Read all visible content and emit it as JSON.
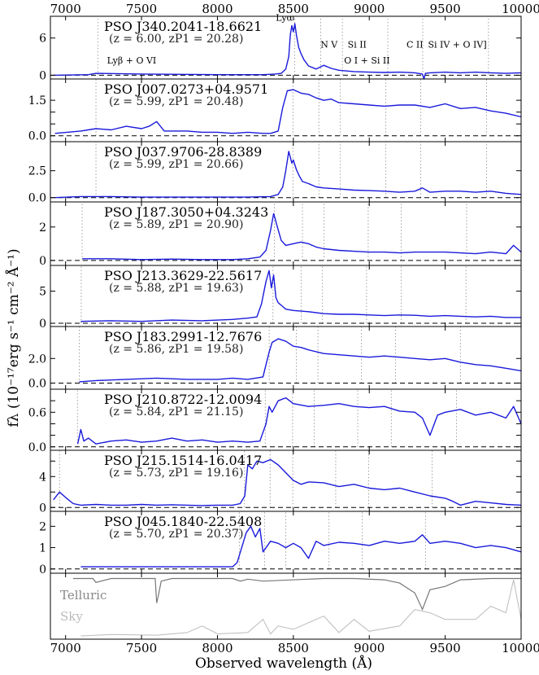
{
  "chart_data": {
    "type": "line",
    "xlabel": "Observed wavelength (Å)",
    "ylabel": "fλ (10⁻¹⁷erg s⁻¹ cm⁻² Å⁻¹)",
    "xlim": [
      6900,
      10000
    ],
    "xticks": [
      7000,
      7500,
      8000,
      8500,
      9000,
      9500,
      10000
    ],
    "line_labels": [
      {
        "text": "Lyα",
        "x": 8440,
        "y": 0.93
      },
      {
        "text": "N V",
        "x": 8735,
        "y": 0.5
      },
      {
        "text": "Si II",
        "x": 8920,
        "y": 0.5
      },
      {
        "text": "C II",
        "x": 9300,
        "y": 0.5
      },
      {
        "text": "Si IV + O IV]",
        "x": 9580,
        "y": 0.5
      },
      {
        "text": "Lyβ + O VI",
        "x": 7435,
        "y": 0.25
      },
      {
        "text": "O I + Si II",
        "x": 8985,
        "y": 0.25
      }
    ],
    "panels": [
      {
        "name": "PSO J340.2041-18.6621",
        "info": "(z = 6.00, zP1 = 20.28)",
        "z": 6.0,
        "ylim": [
          -0.6,
          9.5
        ],
        "yticks": [
          0,
          6
        ],
        "ytick_labels": [
          "0",
          "6"
        ],
        "cont": 0.3,
        "peak": 7.8,
        "lines_x": [
          7212,
          8509,
          8680,
          8823,
          9122,
          9352,
          9785
        ],
        "x": [
          6920,
          7150,
          7200,
          7500,
          8000,
          8300,
          8380,
          8420,
          8450,
          8470,
          8480,
          8490,
          8500,
          8510,
          8520,
          8535,
          8550,
          8570,
          8600,
          8650,
          8700,
          8750,
          8800,
          8900,
          9000,
          9100,
          9200,
          9300,
          9350,
          9360,
          9370,
          9400,
          9500,
          9600,
          9700,
          9800,
          9900,
          10000
        ],
        "y": [
          0.0,
          0.1,
          0.3,
          0.2,
          0.1,
          0.1,
          0.2,
          0.3,
          1.0,
          3.0,
          6.5,
          8.0,
          7.0,
          8.3,
          6.5,
          4.5,
          3.5,
          2.5,
          1.5,
          1.0,
          1.6,
          1.1,
          0.8,
          0.6,
          0.5,
          0.45,
          0.5,
          0.4,
          0.2,
          -0.6,
          0.3,
          0.4,
          0.5,
          0.4,
          0.5,
          0.4,
          0.3,
          0.4
        ]
      },
      {
        "name": "PSO J007.0273+04.9571",
        "info": "(z = 5.99, zP1 = 20.48)",
        "z": 5.99,
        "ylim": [
          -0.25,
          2.4
        ],
        "yticks": [
          0,
          0.5,
          1.0,
          1.5
        ],
        "ytick_labels": [
          "0.0",
          "",
          "",
          "1.5"
        ],
        "cont": 1.25,
        "peak": 1.9,
        "lines_x": [
          7200,
          8497,
          8668,
          8810,
          9108,
          9339,
          9772
        ],
        "x": [
          6930,
          7100,
          7200,
          7300,
          7400,
          7500,
          7550,
          7600,
          7650,
          7700,
          7800,
          7900,
          8000,
          8100,
          8200,
          8300,
          8350,
          8400,
          8430,
          8460,
          8500,
          8550,
          8600,
          8650,
          8700,
          8750,
          8800,
          8900,
          9000,
          9100,
          9200,
          9300,
          9400,
          9500,
          9600,
          9700,
          9800,
          9900,
          10000
        ],
        "y": [
          0.1,
          0.2,
          0.3,
          0.25,
          0.4,
          0.3,
          0.4,
          0.6,
          0.2,
          0.2,
          0.2,
          0.15,
          0.15,
          0.1,
          0.15,
          0.1,
          0.1,
          0.2,
          1.2,
          1.9,
          1.95,
          1.8,
          1.75,
          1.6,
          1.5,
          1.55,
          1.4,
          1.35,
          1.3,
          1.25,
          1.3,
          1.3,
          1.2,
          1.35,
          1.15,
          1.2,
          1.05,
          0.95,
          0.8
        ]
      },
      {
        "name": "PSO J037.9706-28.8389",
        "info": "(z = 5.99, zP1 = 20.66)",
        "z": 5.99,
        "ylim": [
          -0.4,
          5.2
        ],
        "yticks": [
          0,
          2.5
        ],
        "ytick_labels": [
          "0.0",
          "2.5"
        ],
        "cont": 0.4,
        "peak": 4.2,
        "lines_x": [
          7200,
          8497,
          8668,
          8810,
          9108,
          9339,
          9772
        ],
        "x": [
          6930,
          7100,
          7300,
          7500,
          7800,
          8000,
          8200,
          8350,
          8400,
          8430,
          8450,
          8470,
          8490,
          8500,
          8520,
          8540,
          8560,
          8600,
          8650,
          8700,
          8800,
          8900,
          9000,
          9100,
          9200,
          9300,
          9350,
          9400,
          9500,
          9600,
          9700,
          9800,
          9900,
          10000
        ],
        "y": [
          0.0,
          0.1,
          0.1,
          0.05,
          0.05,
          0.05,
          0.05,
          0.1,
          0.3,
          1.0,
          2.5,
          4.3,
          3.2,
          3.5,
          2.6,
          2.0,
          1.5,
          1.3,
          1.0,
          0.9,
          0.8,
          0.7,
          0.65,
          0.6,
          0.5,
          0.6,
          0.9,
          0.5,
          0.6,
          0.6,
          0.5,
          0.6,
          0.4,
          0.3
        ]
      },
      {
        "name": "PSO J187.3050+04.3243",
        "info": "(z = 5.89, zP1 = 20.90)",
        "z": 5.89,
        "ylim": [
          -0.3,
          3.5
        ],
        "yticks": [
          0,
          2
        ],
        "ytick_labels": [
          "0",
          "2"
        ],
        "cont": 0.5,
        "peak": 2.8,
        "lines_x": [
          7109,
          8375,
          8560,
          8702,
          8993,
          9210,
          9641
        ],
        "x": [
          7110,
          7300,
          7500,
          7700,
          7900,
          8100,
          8200,
          8280,
          8320,
          8350,
          8370,
          8380,
          8395,
          8420,
          8450,
          8500,
          8550,
          8600,
          8650,
          8700,
          8800,
          8900,
          9000,
          9100,
          9200,
          9300,
          9400,
          9500,
          9600,
          9700,
          9800,
          9900,
          9950,
          10000
        ],
        "y": [
          0.1,
          0.1,
          0.05,
          0.08,
          0.05,
          0.05,
          0.1,
          0.2,
          0.6,
          1.8,
          2.8,
          2.5,
          2.0,
          1.2,
          0.9,
          1.0,
          1.1,
          1.0,
          0.8,
          0.7,
          0.6,
          0.55,
          0.5,
          0.5,
          0.45,
          0.5,
          0.5,
          0.5,
          0.45,
          0.4,
          0.5,
          0.4,
          0.9,
          0.5
        ]
      },
      {
        "name": "PSO J213.3629-22.5617",
        "info": "(z = 5.88, zP1 = 19.63)",
        "z": 5.88,
        "ylim": [
          -0.5,
          9.0
        ],
        "yticks": [
          0,
          5
        ],
        "ytick_labels": [
          "0",
          "5"
        ],
        "cont": 1.2,
        "peak": 8.0,
        "lines_x": [
          7103,
          8366,
          8551,
          8692,
          8982,
          9211,
          9637
        ],
        "x": [
          7100,
          7300,
          7500,
          7700,
          7900,
          8100,
          8200,
          8260,
          8290,
          8320,
          8340,
          8355,
          8370,
          8385,
          8400,
          8420,
          8450,
          8500,
          8600,
          8700,
          8800,
          8900,
          9000,
          9100,
          9200,
          9300,
          9400,
          9500,
          9600,
          9700,
          9800,
          9900,
          10000
        ],
        "y": [
          0.3,
          0.4,
          0.3,
          0.5,
          0.4,
          0.6,
          0.8,
          1.0,
          3.0,
          6.5,
          8.2,
          5.5,
          7.5,
          4.0,
          3.2,
          2.8,
          2.2,
          2.0,
          1.8,
          1.5,
          1.4,
          1.4,
          1.3,
          1.2,
          1.3,
          1.25,
          1.1,
          1.2,
          1.1,
          1.0,
          1.1,
          0.9,
          0.9
        ]
      },
      {
        "name": "PSO J183.2991-12.7676",
        "info": "(z = 5.86, zP1 = 19.58)",
        "z": 5.86,
        "ylim": [
          -0.5,
          4.6
        ],
        "yticks": [
          0,
          2
        ],
        "ytick_labels": [
          "0.0",
          "2.0"
        ],
        "cont": 2.2,
        "peak": 3.6,
        "lines_x": [
          7090,
          8341,
          8519,
          8662,
          8949,
          9172,
          9600
        ],
        "x": [
          7090,
          7200,
          7400,
          7600,
          7800,
          8000,
          8100,
          8200,
          8300,
          8320,
          8340,
          8360,
          8400,
          8450,
          8500,
          8550,
          8600,
          8700,
          8800,
          8900,
          9000,
          9100,
          9200,
          9300,
          9400,
          9500,
          9600,
          9700,
          9800,
          9900,
          10000
        ],
        "y": [
          0.1,
          0.2,
          0.3,
          0.4,
          0.3,
          0.3,
          0.4,
          0.3,
          0.5,
          1.5,
          2.5,
          3.3,
          3.6,
          3.4,
          3.0,
          2.9,
          2.7,
          2.4,
          2.3,
          2.2,
          2.1,
          2.2,
          2.1,
          2.0,
          1.9,
          2.0,
          1.7,
          1.5,
          1.4,
          1.2,
          1.0
        ]
      },
      {
        "name": "PSO J210.8722-12.0094",
        "info": "(z = 5.84, zP1 = 21.15)",
        "z": 5.84,
        "ylim": [
          -0.06,
          1.0
        ],
        "yticks": [
          0,
          0.2,
          0.4,
          0.6,
          0.8
        ],
        "ytick_labels": [
          "0.0",
          "",
          "",
          "0.6",
          ""
        ],
        "cont": 0.6,
        "peak": 0.85,
        "lines_x": [
          7078,
          8315,
          8495,
          8637,
          8924,
          9145,
          9575
        ],
        "x": [
          7080,
          7100,
          7120,
          7150,
          7200,
          7300,
          7400,
          7500,
          7600,
          7700,
          7800,
          7900,
          8000,
          8100,
          8200,
          8280,
          8320,
          8340,
          8360,
          8400,
          8450,
          8500,
          8600,
          8700,
          8800,
          8900,
          9000,
          9100,
          9200,
          9300,
          9350,
          9400,
          9450,
          9500,
          9600,
          9700,
          9800,
          9900,
          9950,
          10000
        ],
        "y": [
          0.05,
          0.3,
          0.1,
          0.15,
          0.05,
          0.1,
          0.12,
          0.08,
          0.1,
          0.15,
          0.1,
          0.12,
          0.08,
          0.1,
          0.08,
          0.1,
          0.4,
          0.7,
          0.6,
          0.8,
          0.85,
          0.75,
          0.7,
          0.72,
          0.75,
          0.7,
          0.68,
          0.7,
          0.62,
          0.6,
          0.5,
          0.2,
          0.55,
          0.6,
          0.65,
          0.55,
          0.6,
          0.5,
          0.7,
          0.4
        ]
      },
      {
        "name": "PSO J215.1514-16.0417",
        "info": "(z = 5.73, zP1 = 19.16)",
        "z": 5.73,
        "ylim": [
          -0.5,
          7.4
        ],
        "yticks": [
          0,
          2,
          4,
          6
        ],
        "ytick_labels": [
          "0",
          "",
          "4",
          ""
        ],
        "cont": 1.5,
        "peak": 6.0,
        "lines_x": [
          6960,
          8178,
          8347,
          8496,
          8779,
          8996,
          9414
        ],
        "x": [
          6920,
          6960,
          7000,
          7050,
          7100,
          7200,
          7300,
          7400,
          7500,
          7600,
          7700,
          7800,
          7900,
          8000,
          8100,
          8150,
          8180,
          8200,
          8230,
          8260,
          8300,
          8350,
          8400,
          8450,
          8500,
          8550,
          8600,
          8700,
          8800,
          8900,
          9000,
          9100,
          9200,
          9300,
          9400,
          9500,
          9550,
          9600,
          9700,
          9800,
          9900,
          10000
        ],
        "y": [
          1.0,
          2.0,
          1.3,
          0.5,
          0.3,
          0.4,
          0.3,
          0.3,
          0.4,
          0.3,
          0.35,
          0.3,
          0.25,
          0.3,
          0.3,
          0.5,
          1.5,
          5.5,
          5.0,
          6.0,
          5.8,
          6.2,
          5.5,
          4.5,
          3.5,
          3.0,
          3.3,
          3.2,
          2.7,
          3.0,
          2.5,
          2.3,
          2.5,
          2.0,
          1.5,
          1.2,
          0.8,
          0.3,
          0.8,
          0.6,
          0.4,
          0.3
        ]
      },
      {
        "name": "PSO J045.1840-22.5408",
        "info": "(z = 5.70, zP1 = 20.37)",
        "z": 5.7,
        "ylim": [
          -0.2,
          2.7
        ],
        "yticks": [
          0,
          1,
          2
        ],
        "ytick_labels": [
          "0",
          "1",
          "2"
        ],
        "cont": 1.2,
        "peak": 2.0,
        "lines_x": [
          6900,
          8144,
          8310,
          8450,
          8735,
          8954,
          9370
        ],
        "x": [
          7100,
          7200,
          7400,
          7600,
          7800,
          8000,
          8100,
          8130,
          8160,
          8190,
          8220,
          8250,
          8280,
          8300,
          8350,
          8400,
          8450,
          8500,
          8550,
          8600,
          8650,
          8700,
          8800,
          8900,
          9000,
          9100,
          9200,
          9300,
          9350,
          9400,
          9500,
          9600,
          9700,
          9800,
          9900,
          10000
        ],
        "y": [
          0.1,
          0.1,
          0.1,
          0.1,
          0.1,
          0.1,
          0.1,
          0.3,
          1.0,
          1.7,
          2.0,
          1.5,
          1.9,
          0.8,
          1.3,
          1.2,
          1.0,
          1.2,
          1.0,
          0.5,
          1.3,
          1.1,
          1.25,
          1.2,
          1.1,
          1.3,
          1.2,
          1.3,
          1.6,
          1.2,
          1.3,
          1.2,
          1.0,
          1.1,
          1.0,
          0.8
        ]
      }
    ],
    "bottom_panel": {
      "ylim": [
        0,
        1
      ],
      "telluric": {
        "label": "Telluric",
        "x": [
          7050,
          7180,
          7200,
          7300,
          7590,
          7600,
          7610,
          7630,
          7700,
          8100,
          8150,
          8200,
          8300,
          8700,
          8900,
          9100,
          9200,
          9300,
          9350,
          9400,
          9500,
          9600,
          9800,
          10000
        ],
        "y": [
          0.92,
          0.92,
          0.86,
          0.92,
          0.92,
          0.55,
          0.65,
          0.88,
          0.92,
          0.92,
          0.88,
          0.91,
          0.88,
          0.92,
          0.92,
          0.9,
          0.85,
          0.7,
          0.45,
          0.75,
          0.8,
          0.9,
          0.92,
          0.92
        ]
      },
      "sky": {
        "label": "Sky",
        "x": [
          7100,
          7300,
          7600,
          7800,
          7900,
          8000,
          8200,
          8300,
          8350,
          8400,
          8500,
          8700,
          8800,
          8900,
          9000,
          9200,
          9300,
          9400,
          9500,
          9700,
          9800,
          9900,
          9950,
          10000
        ],
        "y": [
          0.05,
          0.07,
          0.06,
          0.1,
          0.2,
          0.08,
          0.1,
          0.3,
          0.08,
          0.2,
          0.15,
          0.35,
          0.1,
          0.3,
          0.12,
          0.2,
          0.45,
          0.4,
          0.3,
          0.3,
          0.5,
          0.4,
          0.9,
          0.3
        ]
      }
    }
  }
}
